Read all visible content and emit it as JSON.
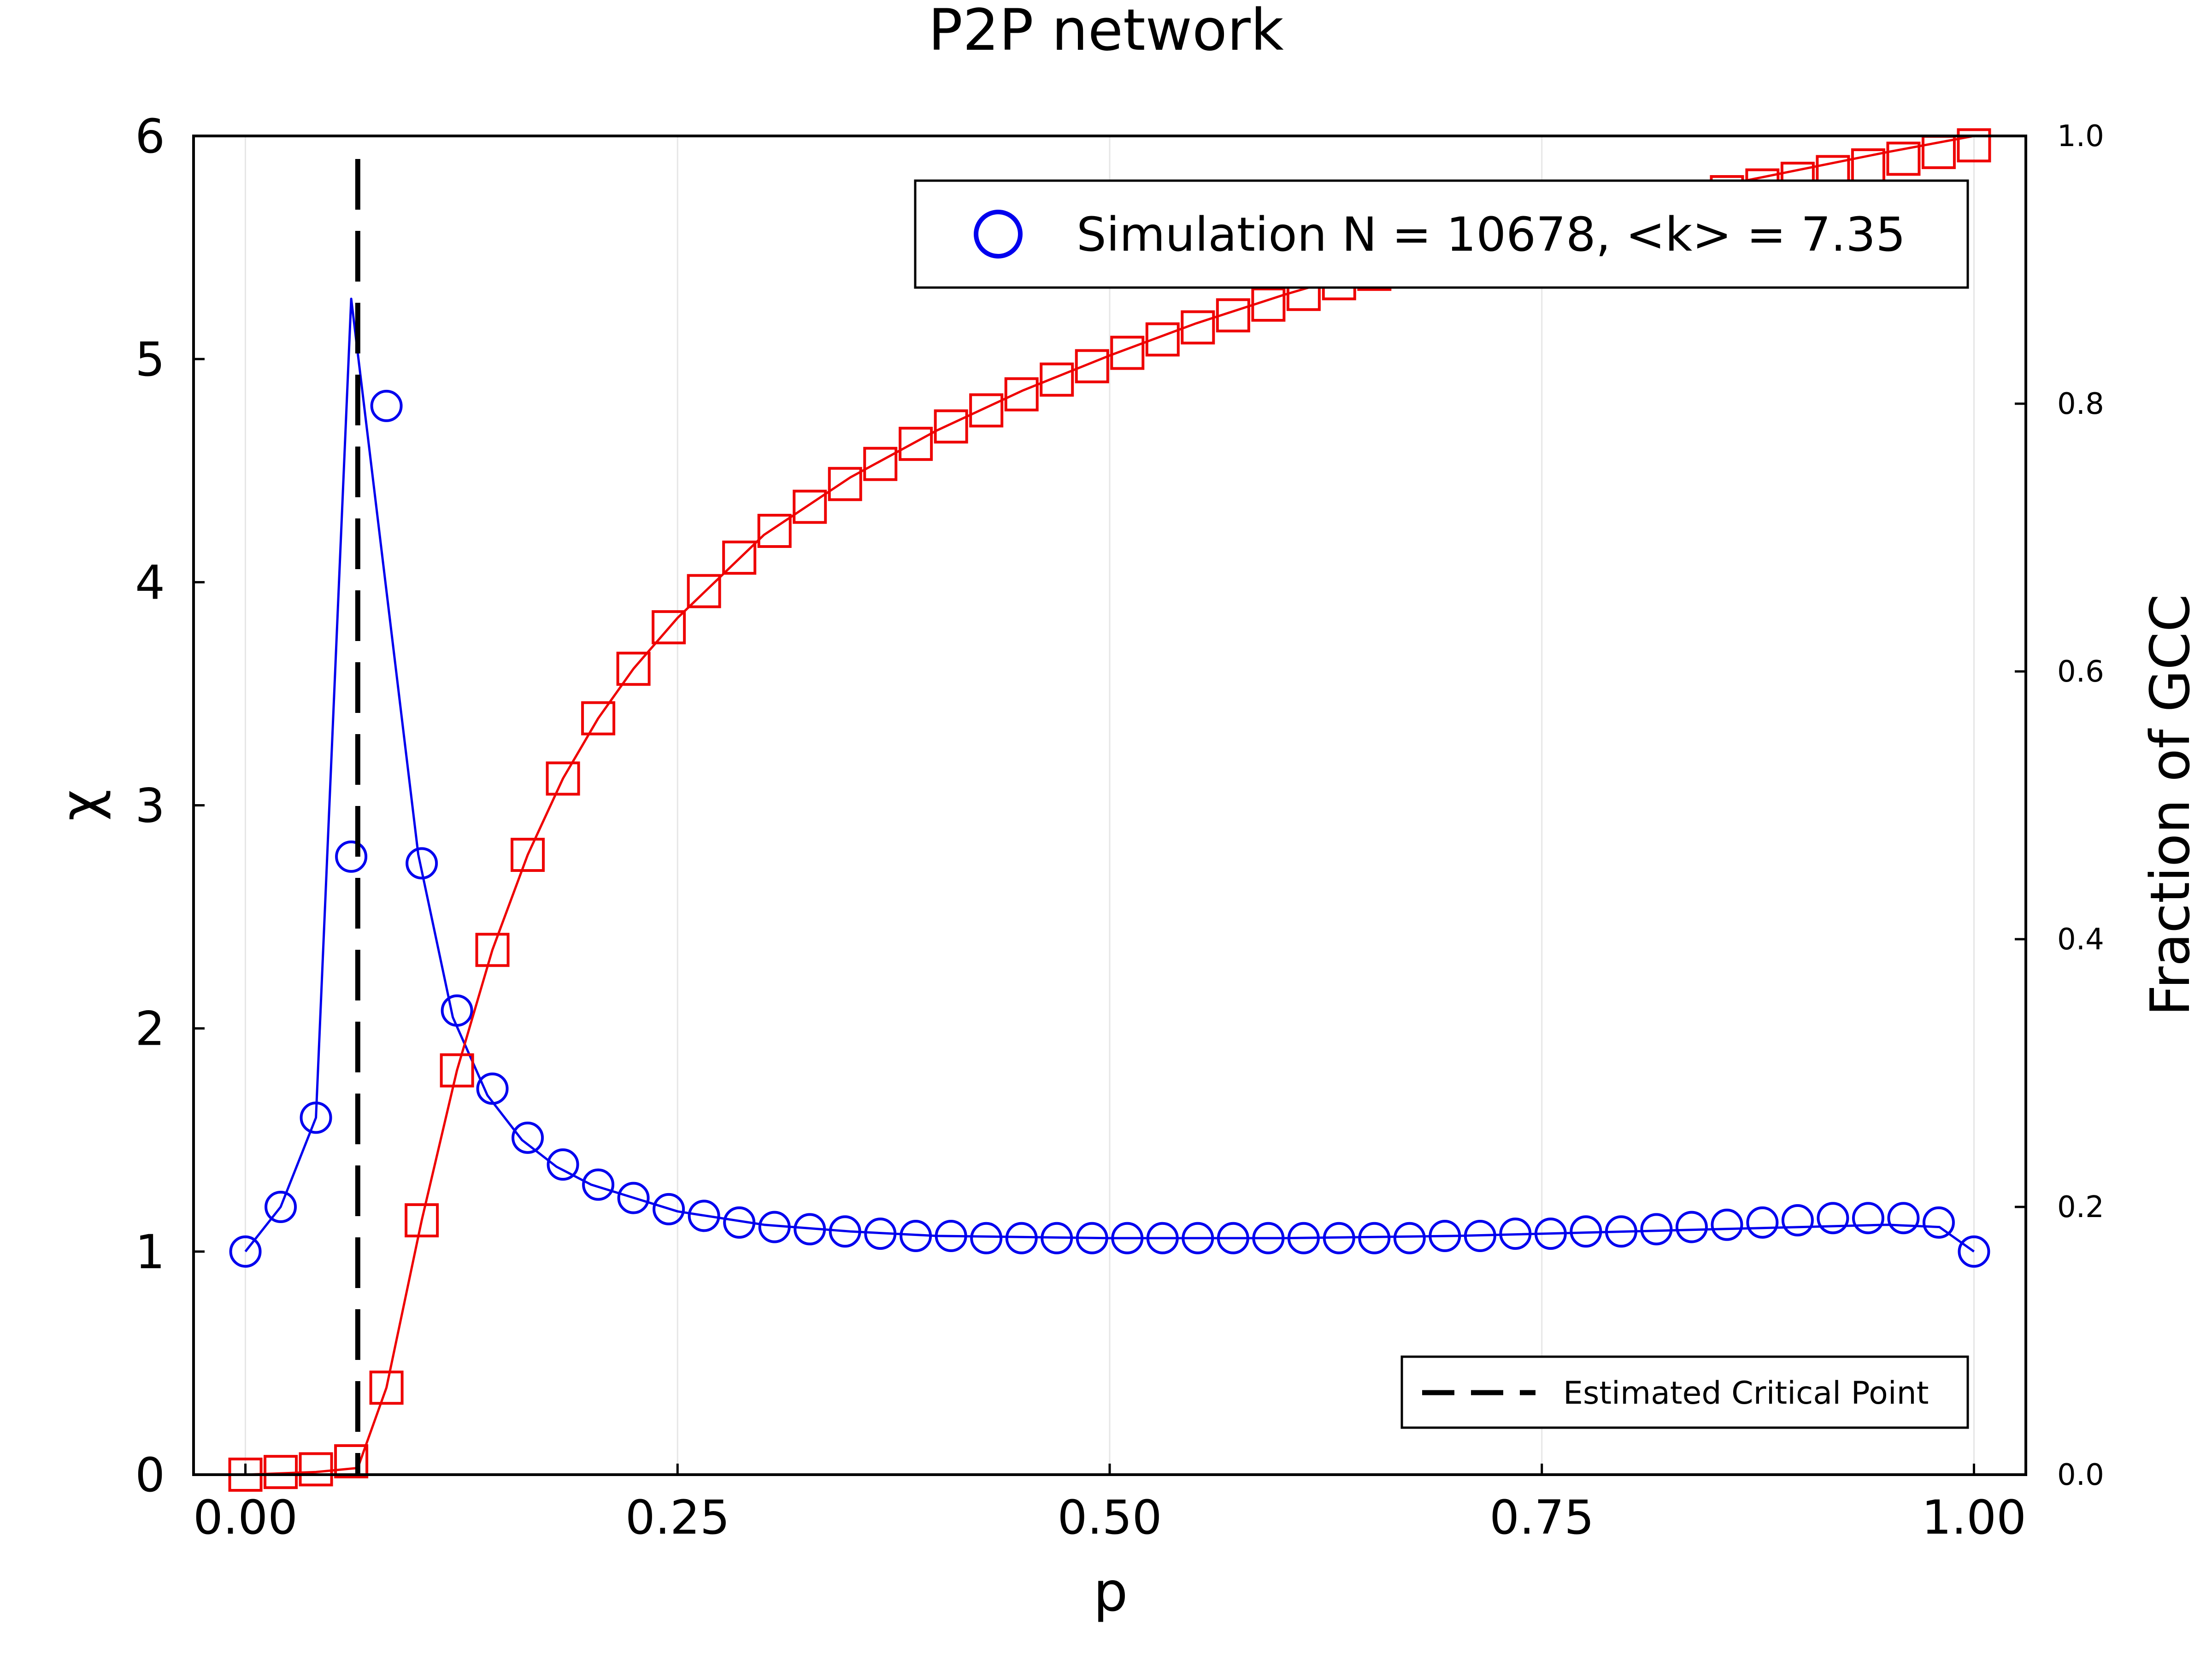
{
  "chart_data": {
    "type": "line",
    "title": "P2P network",
    "xlabel": "p",
    "ylabel_left": "χ",
    "ylabel_right": "Fraction of GCC",
    "xlim": [
      -0.03,
      1.03
    ],
    "ylim_left": [
      0,
      6
    ],
    "ylim_right": [
      0,
      1.0
    ],
    "x_ticks": [
      "0.00",
      "0.25",
      "0.50",
      "0.75",
      "1.00"
    ],
    "x_tick_values": [
      0,
      0.25,
      0.5,
      0.75,
      1.0
    ],
    "y_ticks_left": [
      "0",
      "1",
      "2",
      "3",
      "4",
      "5",
      "6"
    ],
    "y_tick_values_left": [
      0,
      1,
      2,
      3,
      4,
      5,
      6
    ],
    "y_ticks_right": [
      "0.0",
      "0.2",
      "0.4",
      "0.6",
      "0.8",
      "1.0"
    ],
    "y_tick_values_right": [
      0,
      0.2,
      0.4,
      0.6,
      0.8,
      1.0
    ],
    "grid": true,
    "critical_point_x": 0.065,
    "legend_top": {
      "position": "top-right",
      "label": "Simulation N = 10678, <k> = 7.35"
    },
    "legend_bottom": {
      "position": "bottom-right",
      "label": "Estimated Critical Point"
    },
    "series": [
      {
        "axis": "left",
        "color": "#0000ee",
        "marker": "circle",
        "x": [
          0.0,
          0.0204,
          0.0408,
          0.0612,
          0.0816,
          0.102,
          0.1224,
          0.1429,
          0.1633,
          0.1837,
          0.2041,
          0.2245,
          0.2449,
          0.2653,
          0.2857,
          0.3061,
          0.3265,
          0.3469,
          0.3673,
          0.3878,
          0.4082,
          0.4286,
          0.449,
          0.4694,
          0.4898,
          0.5102,
          0.5306,
          0.551,
          0.5714,
          0.5918,
          0.6122,
          0.6327,
          0.6531,
          0.6735,
          0.6939,
          0.7143,
          0.7347,
          0.7551,
          0.7755,
          0.7959,
          0.8163,
          0.8367,
          0.8571,
          0.8776,
          0.898,
          0.9184,
          0.9388,
          0.9592,
          0.9796,
          1.0
        ],
        "y": [
          1.0,
          1.2,
          1.6,
          2.77,
          4.79,
          2.74,
          2.08,
          1.73,
          1.51,
          1.39,
          1.3,
          1.24,
          1.19,
          1.16,
          1.13,
          1.11,
          1.1,
          1.09,
          1.08,
          1.07,
          1.07,
          1.06,
          1.06,
          1.06,
          1.06,
          1.06,
          1.06,
          1.06,
          1.06,
          1.06,
          1.06,
          1.06,
          1.06,
          1.06,
          1.07,
          1.07,
          1.08,
          1.08,
          1.09,
          1.09,
          1.1,
          1.11,
          1.12,
          1.13,
          1.14,
          1.15,
          1.15,
          1.15,
          1.13,
          1.0
        ],
        "line_x": [
          0.0,
          0.0204,
          0.0408,
          0.0612,
          0.1,
          0.12,
          0.14,
          0.16,
          0.18,
          0.2,
          0.25,
          0.3,
          0.35,
          0.4,
          0.5,
          0.6,
          0.7,
          0.8,
          0.85,
          0.9,
          0.95,
          0.98,
          1.0
        ],
        "line_y": [
          1.0,
          1.2,
          1.6,
          5.27,
          2.78,
          2.05,
          1.7,
          1.5,
          1.38,
          1.3,
          1.18,
          1.12,
          1.09,
          1.07,
          1.06,
          1.06,
          1.07,
          1.09,
          1.1,
          1.11,
          1.12,
          1.11,
          1.0
        ]
      },
      {
        "axis": "right",
        "color": "#ee0000",
        "marker": "square",
        "x": [
          0.0,
          0.0204,
          0.0408,
          0.0612,
          0.0816,
          0.102,
          0.1224,
          0.1429,
          0.1633,
          0.1837,
          0.2041,
          0.2245,
          0.2449,
          0.2653,
          0.2857,
          0.3061,
          0.3265,
          0.3469,
          0.3673,
          0.3878,
          0.4082,
          0.4286,
          0.449,
          0.4694,
          0.4898,
          0.5102,
          0.5306,
          0.551,
          0.5714,
          0.5918,
          0.6122,
          0.6327,
          0.6531,
          0.6735,
          0.6939,
          0.7143,
          0.7347,
          0.7551,
          0.7755,
          0.7959,
          0.8163,
          0.8367,
          0.8571,
          0.8776,
          0.898,
          0.9184,
          0.9388,
          0.9592,
          0.9796,
          1.0
        ],
        "y": [
          0.0,
          0.002,
          0.004,
          0.01,
          0.065,
          0.19,
          0.302,
          0.392,
          0.463,
          0.52,
          0.565,
          0.602,
          0.633,
          0.66,
          0.685,
          0.705,
          0.723,
          0.74,
          0.755,
          0.77,
          0.783,
          0.795,
          0.807,
          0.818,
          0.828,
          0.838,
          0.848,
          0.857,
          0.866,
          0.874,
          0.882,
          0.89,
          0.897,
          0.904,
          0.911,
          0.918,
          0.924,
          0.93,
          0.936,
          0.942,
          0.948,
          0.953,
          0.958,
          0.963,
          0.968,
          0.973,
          0.978,
          0.983,
          0.988,
          0.993
        ],
        "line_x": [
          0.0,
          0.0408,
          0.065,
          0.0816,
          0.102,
          0.1224,
          0.1429,
          0.1633,
          0.1837,
          0.2041,
          0.2245,
          0.25,
          0.3,
          0.35,
          0.4,
          0.45,
          0.5,
          0.55,
          0.6,
          0.65,
          0.7,
          0.75,
          0.8,
          0.85,
          0.9,
          0.95,
          1.0
        ],
        "line_y": [
          0.0,
          0.002,
          0.005,
          0.065,
          0.19,
          0.302,
          0.392,
          0.463,
          0.52,
          0.565,
          0.602,
          0.64,
          0.702,
          0.745,
          0.78,
          0.81,
          0.836,
          0.86,
          0.881,
          0.9,
          0.917,
          0.933,
          0.948,
          0.962,
          0.975,
          0.988,
          1.0
        ]
      }
    ]
  }
}
